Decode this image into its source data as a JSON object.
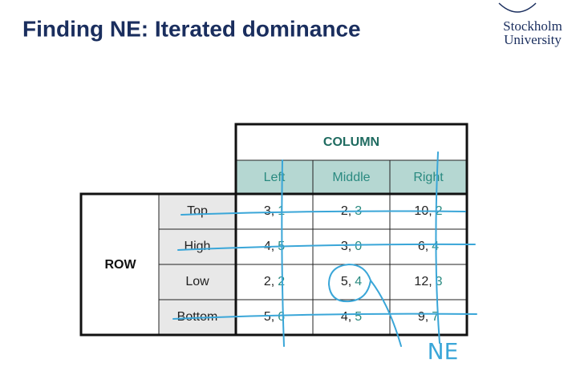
{
  "header": {
    "title": "Finding NE: Iterated dominance",
    "logo": [
      "Stockholm",
      "University"
    ]
  },
  "table": {
    "column_player": "COLUMN",
    "row_player": "ROW",
    "columns": [
      "Left",
      "Middle",
      "Right"
    ],
    "rows": [
      {
        "label": "Top",
        "cells": [
          [
            "3,",
            "1"
          ],
          [
            "2,",
            "3"
          ],
          [
            "10,",
            "2"
          ]
        ]
      },
      {
        "label": "High",
        "cells": [
          [
            "4,",
            "5"
          ],
          [
            "3,",
            "0"
          ],
          [
            "6,",
            "4"
          ]
        ]
      },
      {
        "label": "Low",
        "cells": [
          [
            "2,",
            "2"
          ],
          [
            "5,",
            "4"
          ],
          [
            "12,",
            "3"
          ]
        ]
      },
      {
        "label": "Bottom",
        "cells": [
          [
            "5,",
            "6"
          ],
          [
            "4,",
            "5"
          ],
          [
            "9,",
            "7"
          ]
        ]
      }
    ]
  },
  "annotation": "NE"
}
